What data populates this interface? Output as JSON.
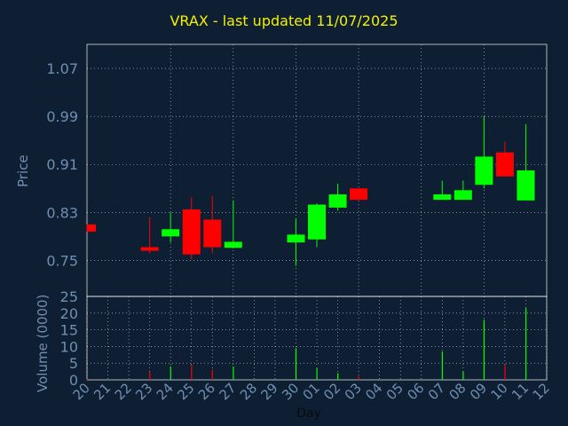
{
  "chart_data": [
    {
      "type": "candlestick",
      "title": "VRAX - last updated 11/07/2025",
      "ylabel": "Price",
      "xlabel": "Day",
      "ylim": [
        0.69,
        1.11
      ],
      "yticks": [
        0.75,
        0.83,
        0.91,
        0.99,
        1.07
      ],
      "ytick_labels": [
        "0.75",
        "0.83",
        "0.91",
        "0.99",
        "1.07"
      ],
      "grid": true,
      "categories": [
        "20",
        "21",
        "22",
        "23",
        "24",
        "25",
        "26",
        "27",
        "28",
        "29",
        "30",
        "01",
        "02",
        "03",
        "04",
        "05",
        "06",
        "07",
        "08",
        "09",
        "10",
        "11",
        "12"
      ],
      "candles": [
        {
          "x": "20",
          "open": 0.81,
          "close": 0.798,
          "high": 0.81,
          "low": 0.798
        },
        {
          "x": "23",
          "open": 0.772,
          "close": 0.766,
          "high": 0.822,
          "low": 0.762
        },
        {
          "x": "24",
          "open": 0.79,
          "close": 0.802,
          "high": 0.83,
          "low": 0.78
        },
        {
          "x": "25",
          "open": 0.835,
          "close": 0.76,
          "high": 0.855,
          "low": 0.752
        },
        {
          "x": "26",
          "open": 0.818,
          "close": 0.772,
          "high": 0.857,
          "low": 0.762
        },
        {
          "x": "27",
          "open": 0.771,
          "close": 0.781,
          "high": 0.85,
          "low": 0.77
        },
        {
          "x": "30",
          "open": 0.78,
          "close": 0.793,
          "high": 0.82,
          "low": 0.741
        },
        {
          "x": "01",
          "open": 0.785,
          "close": 0.843,
          "high": 0.845,
          "low": 0.772
        },
        {
          "x": "02",
          "open": 0.838,
          "close": 0.86,
          "high": 0.878,
          "low": 0.833
        },
        {
          "x": "03",
          "open": 0.87,
          "close": 0.851,
          "high": 0.87,
          "low": 0.851
        },
        {
          "x": "07",
          "open": 0.851,
          "close": 0.86,
          "high": 0.883,
          "low": 0.851
        },
        {
          "x": "08",
          "open": 0.851,
          "close": 0.867,
          "high": 0.883,
          "low": 0.851
        },
        {
          "x": "09",
          "open": 0.876,
          "close": 0.923,
          "high": 0.99,
          "low": 0.87
        },
        {
          "x": "10",
          "open": 0.93,
          "close": 0.89,
          "high": 0.948,
          "low": 0.89
        },
        {
          "x": "11",
          "open": 0.85,
          "close": 0.9,
          "high": 0.977,
          "low": 0.85
        }
      ]
    },
    {
      "type": "bar",
      "ylabel": "Volume (0000)",
      "xlabel": "Day",
      "ylim": [
        0,
        25
      ],
      "yticks": [
        0,
        5,
        10,
        15,
        20,
        25
      ],
      "ytick_labels": [
        "0",
        "5",
        "10",
        "15",
        "20",
        "25"
      ],
      "grid": true,
      "categories": [
        "20",
        "23",
        "24",
        "25",
        "26",
        "27",
        "30",
        "01",
        "02",
        "03",
        "07",
        "08",
        "09",
        "10",
        "11"
      ],
      "values": [
        0.3,
        2.5,
        4,
        4.5,
        3,
        4,
        9.5,
        3.5,
        2,
        1,
        8.5,
        2.5,
        18,
        4.5,
        21.5
      ],
      "colors": [
        "#ff0000",
        "#ff0000",
        "#00ff00",
        "#ff0000",
        "#ff0000",
        "#00ff00",
        "#00ff00",
        "#00ff00",
        "#00ff00",
        "#ff0000",
        "#00ff00",
        "#00ff00",
        "#00ff00",
        "#ff0000",
        "#00ff00"
      ]
    }
  ]
}
